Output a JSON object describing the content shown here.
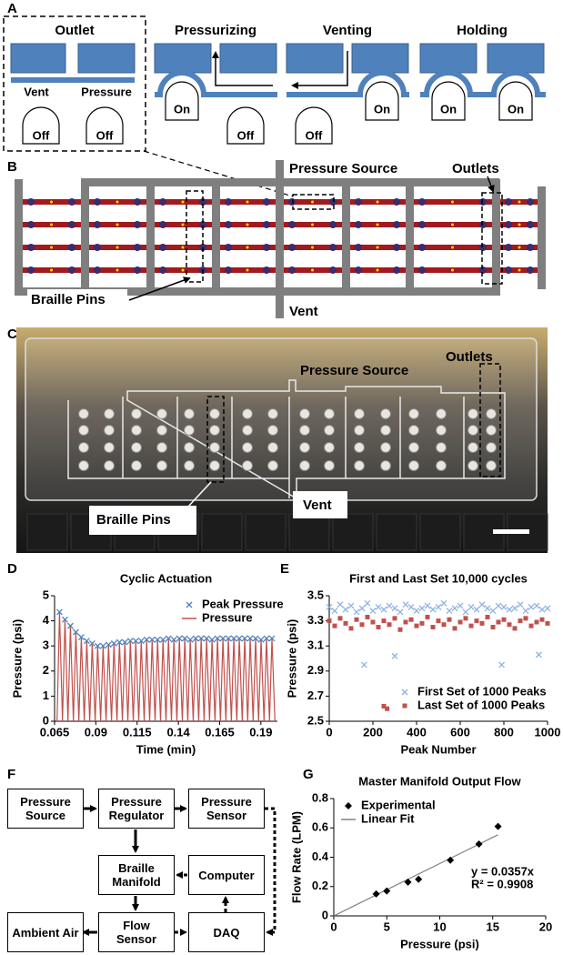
{
  "panel_labels": [
    "A",
    "B",
    "C",
    "D",
    "E",
    "F",
    "G"
  ],
  "panel_a": {
    "outlet": {
      "title": "Outlet",
      "vent": "Vent",
      "pressure": "Pressure",
      "pins": [
        "Off",
        "Off"
      ]
    },
    "states": [
      {
        "title": "Pressurizing",
        "pins": [
          "On",
          "Off"
        ]
      },
      {
        "title": "Venting",
        "pins": [
          "Off",
          "On"
        ]
      },
      {
        "title": "Holding",
        "pins": [
          "On",
          "On"
        ]
      }
    ]
  },
  "panel_b": {
    "pressure_source": "Pressure Source",
    "outlets": "Outlets",
    "braille_pins": "Braille Pins",
    "vent": "Vent"
  },
  "panel_c": {
    "pressure_source": "Pressure Source",
    "outlets": "Outlets",
    "braille_pins": "Braille Pins",
    "vent": "Vent"
  },
  "panel_f": {
    "nodes": [
      "Pressure Source",
      "Pressure Regulator",
      "Pressure Sensor",
      "Braille Manifold",
      "Computer",
      "Ambient Air",
      "Flow Sensor",
      "DAQ"
    ]
  },
  "chart_data": [
    {
      "type": "line",
      "title": "Cyclic Actuation",
      "xlabel": "Time (min)",
      "ylabel": "Pressure (psi)",
      "xlim": [
        0.065,
        0.2
      ],
      "xticks": [
        0.065,
        0.09,
        0.115,
        0.14,
        0.165,
        0.19
      ],
      "ylim": [
        0,
        5
      ],
      "yticks": [
        0,
        1,
        2,
        3,
        4,
        5
      ],
      "legend": "upper right",
      "series": [
        {
          "name": "Peak Pressure",
          "type": "scatter",
          "marker": "x",
          "color": "#4f81bd",
          "x": [
            0.068,
            0.0713,
            0.0746,
            0.0779,
            0.0812,
            0.0845,
            0.0878,
            0.0911,
            0.0944,
            0.0977,
            0.101,
            0.1043,
            0.1076,
            0.1109,
            0.1142,
            0.1175,
            0.1208,
            0.1241,
            0.1274,
            0.1307,
            0.134,
            0.1373,
            0.1406,
            0.1439,
            0.1472,
            0.1505,
            0.1538,
            0.1571,
            0.1604,
            0.1637,
            0.167,
            0.1703,
            0.1736,
            0.1769,
            0.1802,
            0.1835,
            0.1868,
            0.1901,
            0.1934,
            0.1967
          ],
          "values": [
            4.35,
            4.05,
            3.8,
            3.55,
            3.35,
            3.2,
            3.1,
            3.0,
            3.0,
            3.05,
            3.1,
            3.15,
            3.15,
            3.2,
            3.2,
            3.2,
            3.25,
            3.25,
            3.25,
            3.25,
            3.3,
            3.25,
            3.3,
            3.3,
            3.25,
            3.3,
            3.3,
            3.3,
            3.25,
            3.3,
            3.3,
            3.3,
            3.3,
            3.3,
            3.3,
            3.3,
            3.3,
            3.25,
            3.3,
            3.3
          ]
        },
        {
          "name": "Pressure",
          "type": "line",
          "color": "#c0504d",
          "x": [
            0.0665,
            0.068,
            0.0698,
            0.0713,
            0.0731,
            0.0746,
            0.0764,
            0.0779,
            0.0797,
            0.0812,
            0.083,
            0.0845,
            0.0863,
            0.0878,
            0.0896,
            0.0911,
            0.0929,
            0.0944,
            0.0962,
            0.0977,
            0.0995,
            0.101,
            0.1028,
            0.1043,
            0.1061,
            0.1076,
            0.1094,
            0.1109,
            0.1127,
            0.1142,
            0.116,
            0.1175,
            0.1193,
            0.1208,
            0.1226,
            0.1241,
            0.1259,
            0.1274,
            0.1292,
            0.1307,
            0.1325,
            0.134,
            0.1358,
            0.1373,
            0.1391,
            0.1406,
            0.1424,
            0.1439,
            0.1457,
            0.1472,
            0.149,
            0.1505,
            0.1523,
            0.1538,
            0.1556,
            0.1571,
            0.1589,
            0.1604,
            0.1622,
            0.1637,
            0.1655,
            0.167,
            0.1688,
            0.1703,
            0.1721,
            0.1736,
            0.1754,
            0.1769,
            0.1787,
            0.1802,
            0.182,
            0.1835,
            0.1853,
            0.1868,
            0.1886,
            0.1901,
            0.1919,
            0.1934,
            0.1952,
            0.1967,
            0.1985
          ],
          "values": [
            0,
            4.35,
            0,
            4.05,
            0,
            3.8,
            0,
            3.55,
            0,
            3.35,
            0,
            3.2,
            0,
            3.1,
            0,
            3.0,
            0,
            3.0,
            0,
            3.05,
            0,
            3.1,
            0,
            3.15,
            0,
            3.15,
            0,
            3.2,
            0,
            3.2,
            0,
            3.2,
            0,
            3.25,
            0,
            3.25,
            0,
            3.25,
            0,
            3.25,
            0,
            3.3,
            0,
            3.25,
            0,
            3.3,
            0,
            3.3,
            0,
            3.25,
            0,
            3.3,
            0,
            3.3,
            0,
            3.3,
            0,
            3.25,
            0,
            3.3,
            0,
            3.3,
            0,
            3.3,
            0,
            3.3,
            0,
            3.3,
            0,
            3.3,
            0,
            3.3,
            0,
            3.3,
            0,
            3.25,
            0,
            3.3,
            0,
            3.3,
            0
          ]
        }
      ]
    },
    {
      "type": "scatter",
      "title": "First and Last Set 10,000 cycles",
      "xlabel": "Peak Number",
      "ylabel": "Pressure (psi)",
      "xlim": [
        0,
        1000
      ],
      "xticks": [
        0,
        200,
        400,
        600,
        800,
        1000
      ],
      "ylim": [
        2.5,
        3.5
      ],
      "yticks": [
        2.5,
        2.7,
        2.9,
        3.1,
        3.3,
        3.5
      ],
      "legend": "lower right",
      "series": [
        {
          "name": "First Set of 1000 Peaks",
          "marker": "x",
          "color": "#8db3e2",
          "x": [
            0,
            25,
            50,
            75,
            100,
            125,
            150,
            175,
            200,
            225,
            250,
            275,
            300,
            325,
            350,
            375,
            400,
            425,
            450,
            475,
            500,
            525,
            550,
            575,
            600,
            625,
            650,
            675,
            700,
            725,
            750,
            775,
            800,
            825,
            850,
            875,
            900,
            925,
            950,
            975,
            1000,
            160,
            300,
            790,
            960
          ],
          "values": [
            3.41,
            3.38,
            3.43,
            3.39,
            3.42,
            3.37,
            3.4,
            3.44,
            3.38,
            3.41,
            3.39,
            3.42,
            3.4,
            3.37,
            3.43,
            3.41,
            3.38,
            3.4,
            3.42,
            3.39,
            3.41,
            3.44,
            3.38,
            3.4,
            3.42,
            3.37,
            3.41,
            3.39,
            3.43,
            3.4,
            3.38,
            3.42,
            3.41,
            3.39,
            3.4,
            3.43,
            3.38,
            3.41,
            3.42,
            3.39,
            3.4,
            2.95,
            3.02,
            2.95,
            3.03
          ]
        },
        {
          "name": "Last Set of 1000 Peaks",
          "marker": "square",
          "color": "#c0504d",
          "x": [
            0,
            25,
            50,
            75,
            100,
            125,
            150,
            175,
            200,
            225,
            250,
            275,
            300,
            325,
            350,
            375,
            400,
            425,
            450,
            475,
            500,
            525,
            550,
            575,
            600,
            625,
            650,
            675,
            700,
            725,
            750,
            775,
            800,
            825,
            850,
            875,
            900,
            925,
            950,
            975,
            1000,
            250,
            265
          ],
          "values": [
            3.3,
            3.26,
            3.32,
            3.28,
            3.24,
            3.31,
            3.27,
            3.33,
            3.29,
            3.25,
            3.3,
            3.27,
            3.32,
            3.23,
            3.29,
            3.31,
            3.26,
            3.28,
            3.33,
            3.25,
            3.3,
            3.27,
            3.31,
            3.24,
            3.29,
            3.32,
            3.26,
            3.3,
            3.28,
            3.33,
            3.25,
            3.29,
            3.31,
            3.27,
            3.24,
            3.3,
            3.32,
            3.26,
            3.29,
            3.31,
            3.28,
            2.62,
            2.6
          ]
        }
      ]
    },
    {
      "type": "scatter",
      "title": "Master Manifold Output Flow",
      "xlabel": "Pressure (psi)",
      "ylabel": "Flow Rate (LPM)",
      "xlim": [
        0,
        20
      ],
      "xticks": [
        0,
        5,
        10,
        15,
        20
      ],
      "ylim": [
        0,
        0.8
      ],
      "yticks": [
        0,
        0.2,
        0.4,
        0.6,
        0.8
      ],
      "legend": "upper left",
      "annotations": [
        "y = 0.0357x",
        "R² = 0.9908"
      ],
      "series": [
        {
          "name": "Experimental",
          "marker": "diamond",
          "color": "#000000",
          "x": [
            4,
            5,
            7,
            8,
            11,
            13.7,
            15.5
          ],
          "values": [
            0.15,
            0.17,
            0.23,
            0.25,
            0.38,
            0.49,
            0.61
          ]
        },
        {
          "name": "Linear Fit",
          "type": "line",
          "color": "#808080",
          "x": [
            0,
            15.5
          ],
          "values": [
            0,
            0.553
          ]
        }
      ]
    }
  ]
}
